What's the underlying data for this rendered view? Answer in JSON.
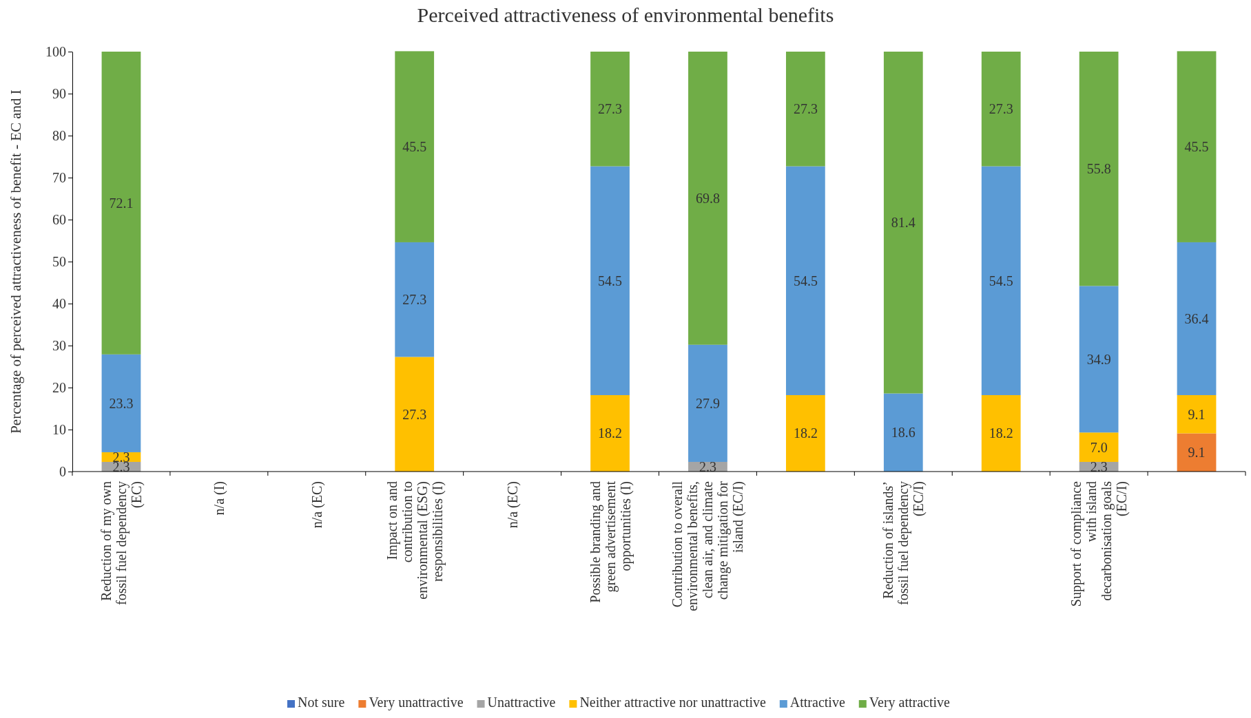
{
  "chart_data": {
    "type": "bar",
    "stacked": true,
    "title": "Perceived attractiveness of environmental benefits",
    "ylabel": "Percentage of perceived attractiveness of benefit - EC and I",
    "categories": [
      "Reduction of my own fossil fuel dependency (EC)",
      "n/a (I)",
      "n/a (EC)",
      "Impact on and contribution to environmental (ESG) responsibilities (I)",
      "n/a (EC)",
      "Possible branding and green advertisement opportunities (I)",
      "Contribution to overall environmental benefits, clean air, and climate change mitigation for island (EC/I)",
      null,
      "Reduction of islands’ fossil fuel dependency (EC/I)",
      null,
      "Support of compliance with island decarbonisation goals (EC/I)",
      null
    ],
    "series": [
      {
        "name": "Not sure",
        "color": "#4472c4",
        "values": [
          null,
          null,
          null,
          null,
          null,
          null,
          null,
          null,
          null,
          null,
          null,
          null
        ],
        "value_labels": [
          null,
          null,
          null,
          null,
          null,
          null,
          null,
          null,
          null,
          null,
          null,
          null
        ]
      },
      {
        "name": "Very unattractive",
        "color": "#ed7d31",
        "values": [
          null,
          null,
          null,
          null,
          null,
          null,
          null,
          null,
          null,
          null,
          null,
          9.1
        ],
        "value_labels": [
          null,
          null,
          null,
          null,
          null,
          null,
          null,
          null,
          null,
          null,
          null,
          "9.1"
        ]
      },
      {
        "name": "Unattractive",
        "color": "#a5a5a5",
        "values": [
          2.3,
          null,
          null,
          null,
          null,
          null,
          2.3,
          null,
          null,
          null,
          2.3,
          null
        ],
        "value_labels": [
          "2.3",
          null,
          null,
          null,
          null,
          null,
          "2.3",
          null,
          null,
          null,
          "2.3",
          null
        ]
      },
      {
        "name": "Neither attractive nor unattractive",
        "color": "#ffc000",
        "values": [
          2.3,
          null,
          null,
          27.3,
          null,
          18.2,
          null,
          18.2,
          null,
          18.2,
          7.0,
          9.1
        ],
        "value_labels": [
          "2.3",
          null,
          null,
          "27.3",
          null,
          "18.2",
          null,
          "18.2",
          null,
          "18.2",
          "7.0",
          "9.1"
        ]
      },
      {
        "name": "Attractive",
        "color": "#5b9bd5",
        "values": [
          23.3,
          null,
          null,
          27.3,
          null,
          54.5,
          27.9,
          54.5,
          18.6,
          54.5,
          34.9,
          36.4
        ],
        "value_labels": [
          "23.3",
          null,
          null,
          "27.3",
          null,
          "54.5",
          "27.9",
          "54.5",
          "18.6",
          "54.5",
          "34.9",
          "36.4"
        ]
      },
      {
        "name": "Very attractive",
        "color": "#70ad47",
        "values": [
          72.1,
          null,
          null,
          45.5,
          null,
          27.3,
          69.8,
          27.3,
          81.4,
          27.3,
          55.8,
          45.5
        ],
        "value_labels": [
          "72.1",
          null,
          null,
          "45.5",
          null,
          "27.3",
          "69.8",
          "27.3",
          "81.4",
          "27.3",
          "55.8",
          "45.5"
        ]
      }
    ],
    "ylim": [
      0,
      100
    ],
    "yticks": [
      0,
      10,
      20,
      30,
      40,
      50,
      60,
      70,
      80,
      90,
      100
    ],
    "grid": false,
    "legend": "bottom"
  }
}
